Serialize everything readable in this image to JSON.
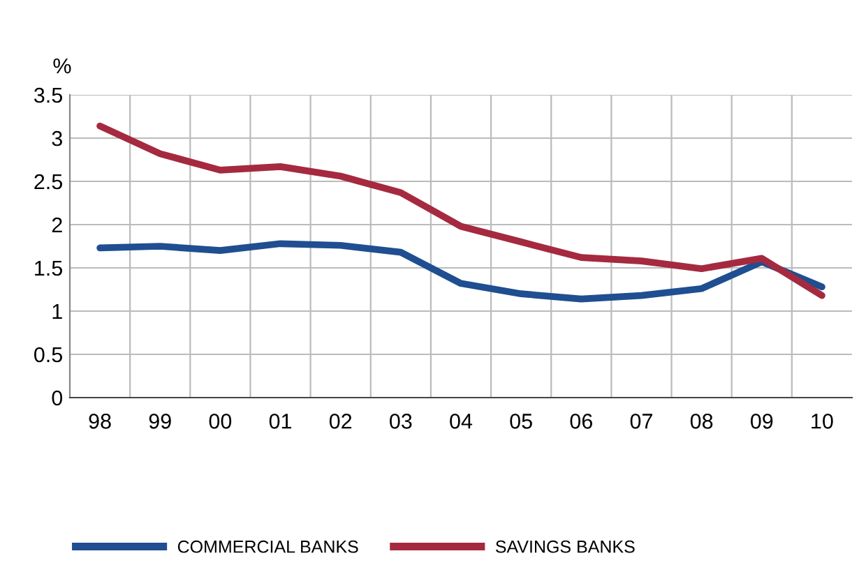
{
  "chart_data": {
    "type": "line",
    "ylabel": "%",
    "categories": [
      "98",
      "99",
      "00",
      "01",
      "02",
      "03",
      "04",
      "05",
      "06",
      "07",
      "08",
      "09",
      "10"
    ],
    "series": [
      {
        "name": "COMMERCIAL BANKS",
        "color": "#1f4e91",
        "values": [
          1.73,
          1.75,
          1.7,
          1.78,
          1.76,
          1.68,
          1.32,
          1.2,
          1.14,
          1.18,
          1.26,
          1.57,
          1.28
        ]
      },
      {
        "name": "SAVINGS BANKS",
        "color": "#a52a3f",
        "values": [
          3.14,
          2.82,
          2.63,
          2.67,
          2.56,
          2.37,
          1.98,
          1.8,
          1.62,
          1.58,
          1.49,
          1.61,
          1.18
        ]
      }
    ],
    "ylim": [
      0,
      3.5
    ],
    "yticks": [
      0,
      0.5,
      1,
      1.5,
      2,
      2.5,
      3,
      3.5
    ],
    "grid": true,
    "legend": "bottom",
    "marker": "none",
    "line_style": "solid"
  }
}
